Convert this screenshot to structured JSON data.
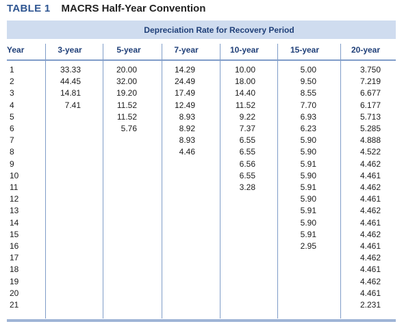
{
  "title": {
    "label": "TABLE 1",
    "text": "MACRS Half-Year Convention"
  },
  "band_title": "Depreciation Rate for Recovery Period",
  "columns": [
    "Year",
    "3-year",
    "5-year",
    "7-year",
    "10-year",
    "15-year",
    "20-year"
  ],
  "years": [
    "1",
    "2",
    "3",
    "4",
    "5",
    "6",
    "7",
    "8",
    "9",
    "10",
    "11",
    "12",
    "13",
    "14",
    "15",
    "16",
    "17",
    "18",
    "19",
    "20",
    "21"
  ],
  "rates": {
    "3-year": [
      "33.33",
      "44.45",
      "14.81",
      "7.41"
    ],
    "5-year": [
      "20.00",
      "32.00",
      "19.20",
      "11.52",
      "11.52",
      "5.76"
    ],
    "7-year": [
      "14.29",
      "24.49",
      "17.49",
      "12.49",
      "8.93",
      "8.92",
      "8.93",
      "4.46"
    ],
    "10-year": [
      "10.00",
      "18.00",
      "14.40",
      "11.52",
      "9.22",
      "7.37",
      "6.55",
      "6.55",
      "6.56",
      "6.55",
      "3.28"
    ],
    "15-year": [
      "5.00",
      "9.50",
      "8.55",
      "7.70",
      "6.93",
      "6.23",
      "5.90",
      "5.90",
      "5.91",
      "5.90",
      "5.91",
      "5.90",
      "5.91",
      "5.90",
      "5.91",
      "2.95"
    ],
    "20-year": [
      "3.750",
      "7.219",
      "6.677",
      "6.177",
      "5.713",
      "5.285",
      "4.888",
      "4.522",
      "4.462",
      "4.461",
      "4.462",
      "4.461",
      "4.462",
      "4.461",
      "4.462",
      "4.461",
      "4.462",
      "4.461",
      "4.462",
      "4.461",
      "2.231"
    ]
  }
}
